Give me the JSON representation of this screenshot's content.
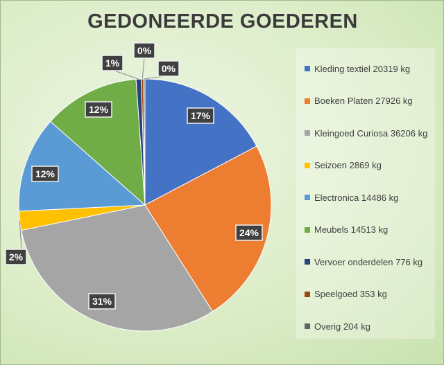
{
  "chart_data": {
    "type": "pie",
    "title": "GEDONEERDE GOEDEREN",
    "legend_position": "right",
    "slices": [
      {
        "name": "Kleding textiel",
        "legend": "Kleding textiel 20319 kg",
        "value": 20319,
        "label": "17%",
        "color": "#4472c4"
      },
      {
        "name": "Boeken Platen",
        "legend": "Boeken Platen 27926 kg",
        "value": 27926,
        "label": "24%",
        "color": "#ed7d31"
      },
      {
        "name": "Kleingoed Curiosa",
        "legend": "Kleingoed Curiosa 36206 kg",
        "value": 36206,
        "label": "31%",
        "color": "#a5a5a5"
      },
      {
        "name": "Seizoen",
        "legend": "Seizoen 2869 kg",
        "value": 2869,
        "label": "2%",
        "color": "#ffc000"
      },
      {
        "name": "Electronica",
        "legend": "Electronica 14486 kg",
        "value": 14486,
        "label": "12%",
        "color": "#5b9bd5"
      },
      {
        "name": "Meubels",
        "legend": "Meubels 14513 kg",
        "value": 14513,
        "label": "12%",
        "color": "#70ad47"
      },
      {
        "name": "Vervoer onderdelen",
        "legend": "Vervoer onderdelen 776 kg",
        "value": 776,
        "label": "1%",
        "color": "#264478"
      },
      {
        "name": "Speelgoed",
        "legend": "Speelgoed 353 kg",
        "value": 353,
        "label": "0%",
        "color": "#9e480e"
      },
      {
        "name": "Overig",
        "legend": "Overig 204 kg",
        "value": 204,
        "label": "0%",
        "color": "#636363"
      }
    ]
  }
}
